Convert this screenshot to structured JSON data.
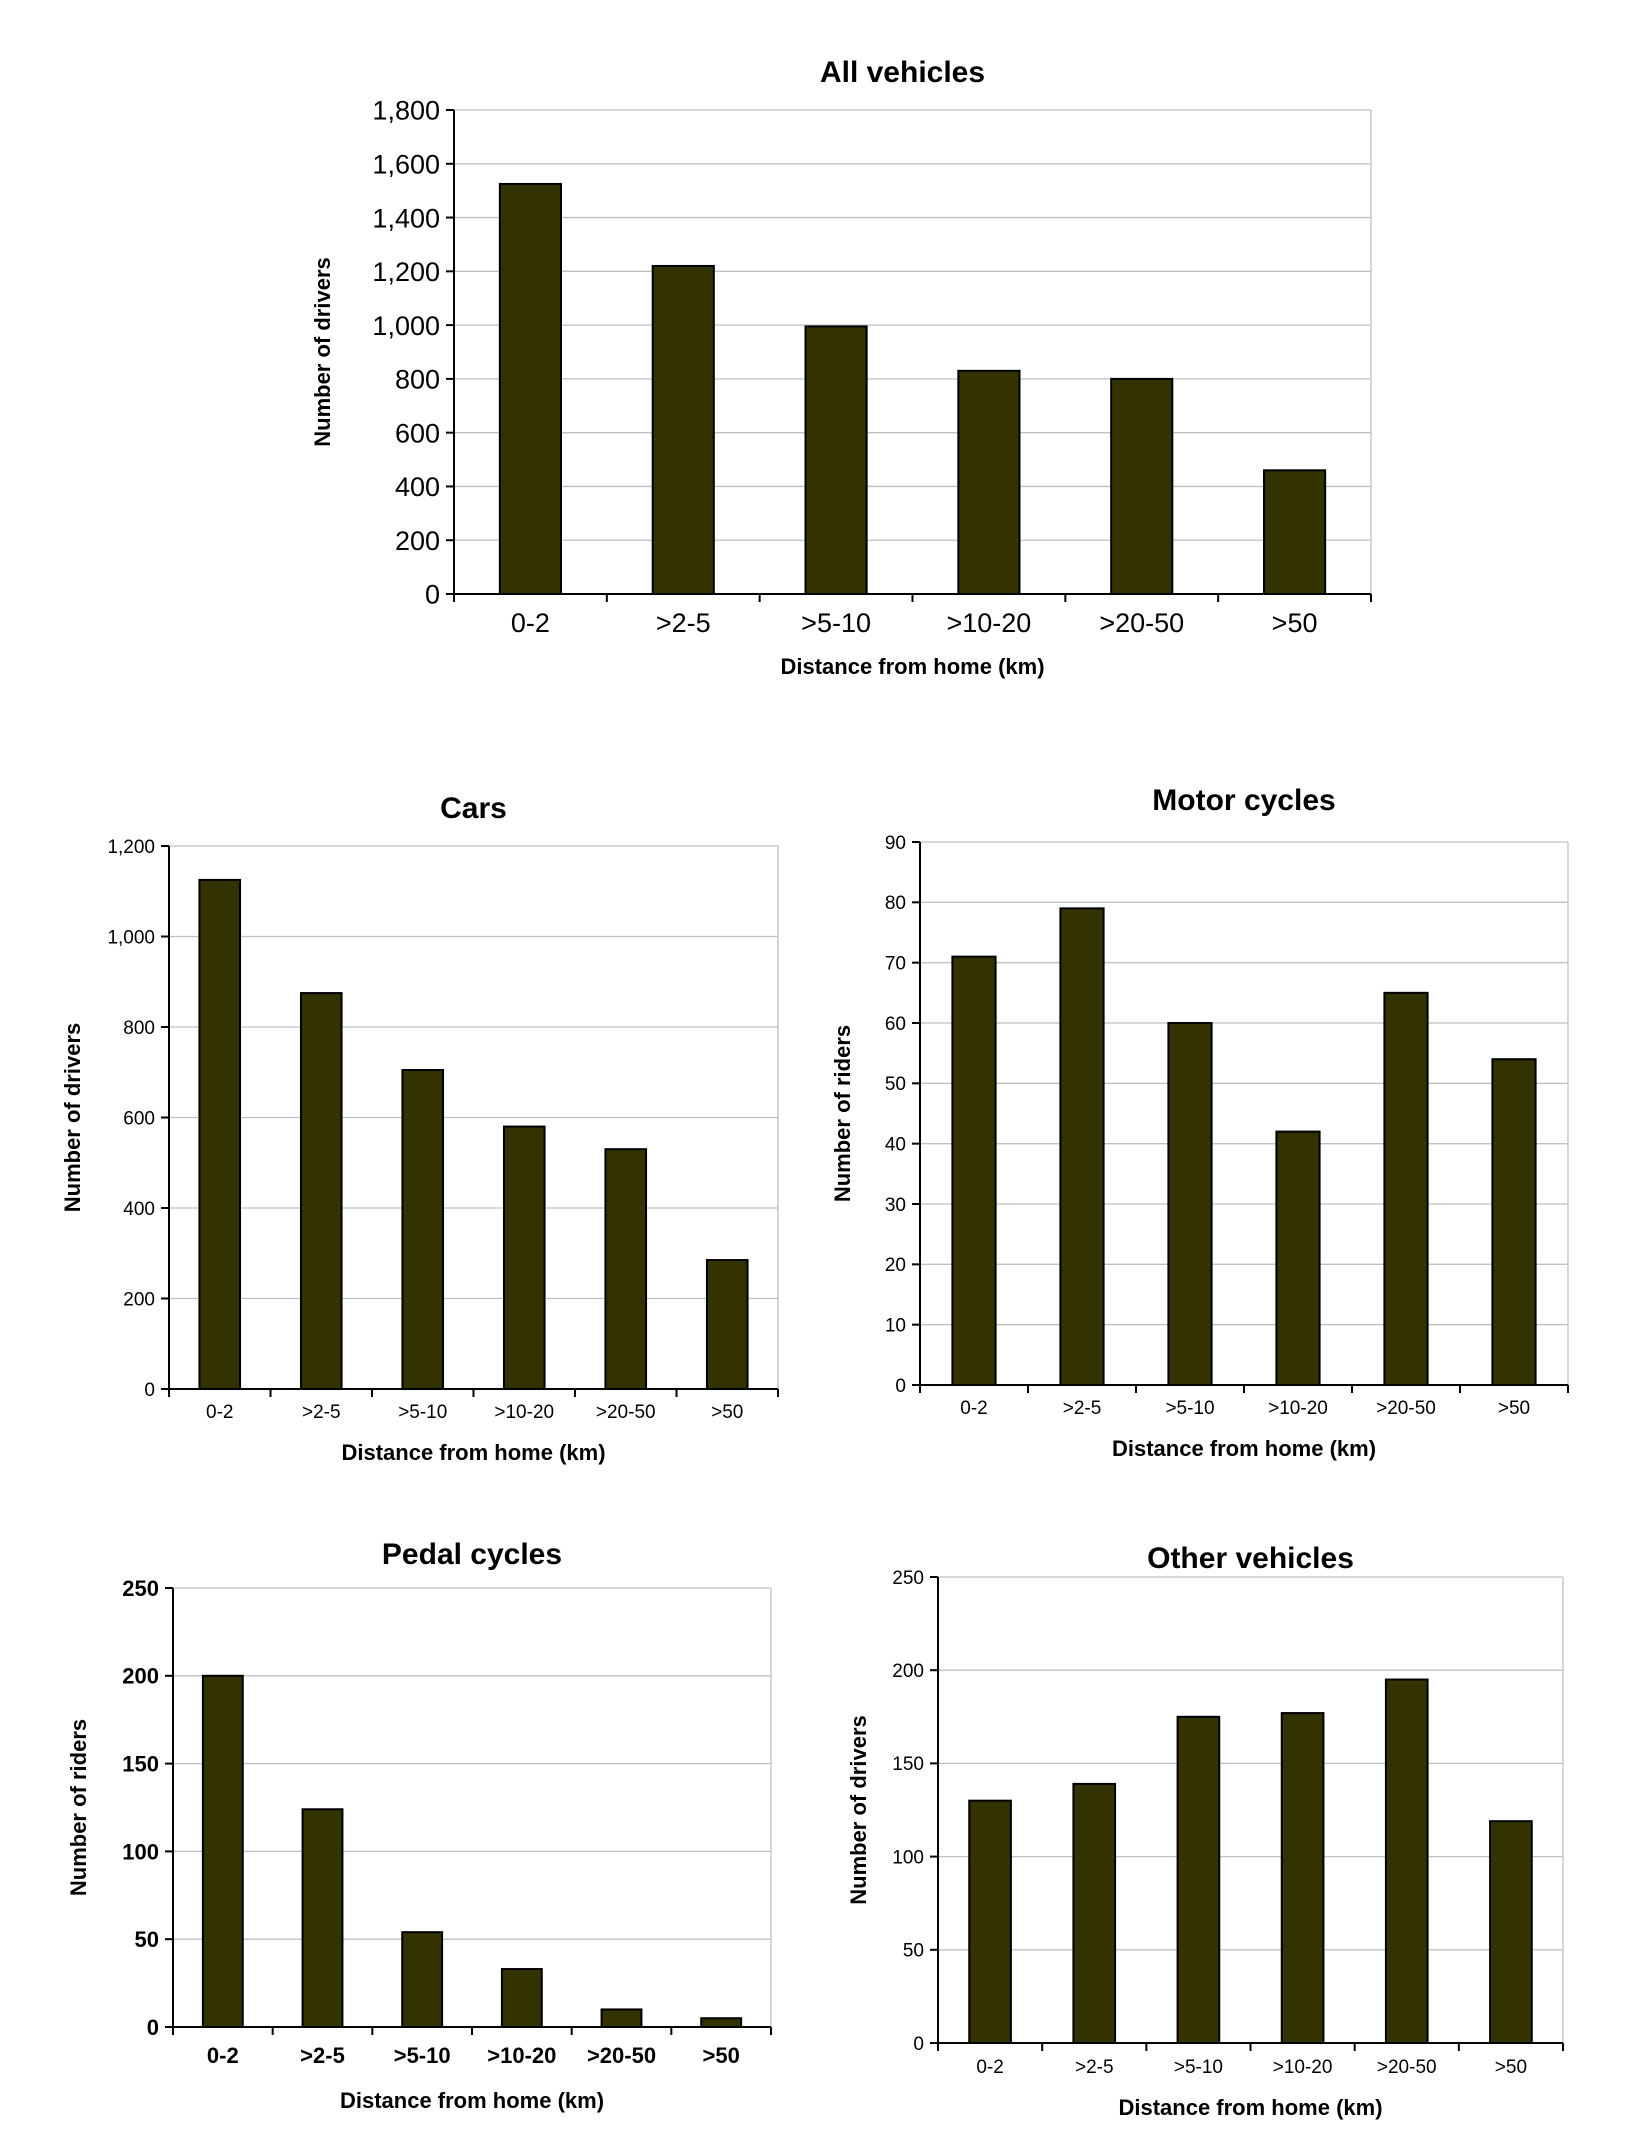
{
  "colors": {
    "bar": "#333300",
    "grid": "#c0c0c0",
    "axis": "#000000"
  },
  "chart_data": [
    {
      "id": "all",
      "type": "bar",
      "title": "All vehicles",
      "xlabel": "Distance from home (km)",
      "ylabel": "Number of drivers",
      "categories": [
        "0-2",
        ">2-5",
        ">5-10",
        ">10-20",
        ">20-50",
        ">50"
      ],
      "values": [
        1525,
        1220,
        995,
        830,
        800,
        460
      ],
      "ylim": [
        0,
        1800
      ],
      "yticks": [
        0,
        200,
        400,
        600,
        800,
        1000,
        1200,
        1400,
        1600,
        1800
      ],
      "ytick_labels": [
        "0",
        "200",
        "400",
        "600",
        "800",
        "1,000",
        "1,200",
        "1,400",
        "1,600",
        "1,800"
      ],
      "grid": true
    },
    {
      "id": "cars",
      "type": "bar",
      "title": "Cars",
      "xlabel": "Distance from home (km)",
      "ylabel": "Number of drivers",
      "categories": [
        "0-2",
        ">2-5",
        ">5-10",
        ">10-20",
        ">20-50",
        ">50"
      ],
      "values": [
        1125,
        875,
        705,
        580,
        530,
        285
      ],
      "ylim": [
        0,
        1200
      ],
      "yticks": [
        0,
        200,
        400,
        600,
        800,
        1000,
        1200
      ],
      "ytick_labels": [
        "0",
        "200",
        "400",
        "600",
        "800",
        "1,000",
        "1,200"
      ],
      "grid": true
    },
    {
      "id": "motor",
      "type": "bar",
      "title": "Motor cycles",
      "xlabel": "Distance from home (km)",
      "ylabel": "Number of riders",
      "categories": [
        "0-2",
        ">2-5",
        ">5-10",
        ">10-20",
        ">20-50",
        ">50"
      ],
      "values": [
        71,
        79,
        60,
        42,
        65,
        54
      ],
      "ylim": [
        0,
        90
      ],
      "yticks": [
        0,
        10,
        20,
        30,
        40,
        50,
        60,
        70,
        80,
        90
      ],
      "ytick_labels": [
        "0",
        "10",
        "20",
        "30",
        "40",
        "50",
        "60",
        "70",
        "80",
        "90"
      ],
      "grid": true
    },
    {
      "id": "pedal",
      "type": "bar",
      "title": "Pedal cycles",
      "xlabel": "Distance from home (km)",
      "ylabel": "Number of riders",
      "categories": [
        "0-2",
        ">2-5",
        ">5-10",
        ">10-20",
        ">20-50",
        ">50"
      ],
      "values": [
        200,
        124,
        54,
        33,
        10,
        5
      ],
      "ylim": [
        0,
        250
      ],
      "yticks": [
        0,
        50,
        100,
        150,
        200,
        250
      ],
      "ytick_labels": [
        "0",
        "50",
        "100",
        "150",
        "200",
        "250"
      ],
      "grid": true
    },
    {
      "id": "other",
      "type": "bar",
      "title": "Other vehicles",
      "xlabel": "Distance from home (km)",
      "ylabel": "Number of drivers",
      "categories": [
        "0-2",
        ">2-5",
        ">5-10",
        ">10-20",
        ">20-50",
        ">50"
      ],
      "values": [
        130,
        139,
        175,
        177,
        195,
        119
      ],
      "ylim": [
        0,
        250
      ],
      "yticks": [
        0,
        50,
        100,
        150,
        200,
        250
      ],
      "ytick_labels": [
        "0",
        "50",
        "100",
        "150",
        "200",
        "250"
      ],
      "grid": true
    }
  ]
}
